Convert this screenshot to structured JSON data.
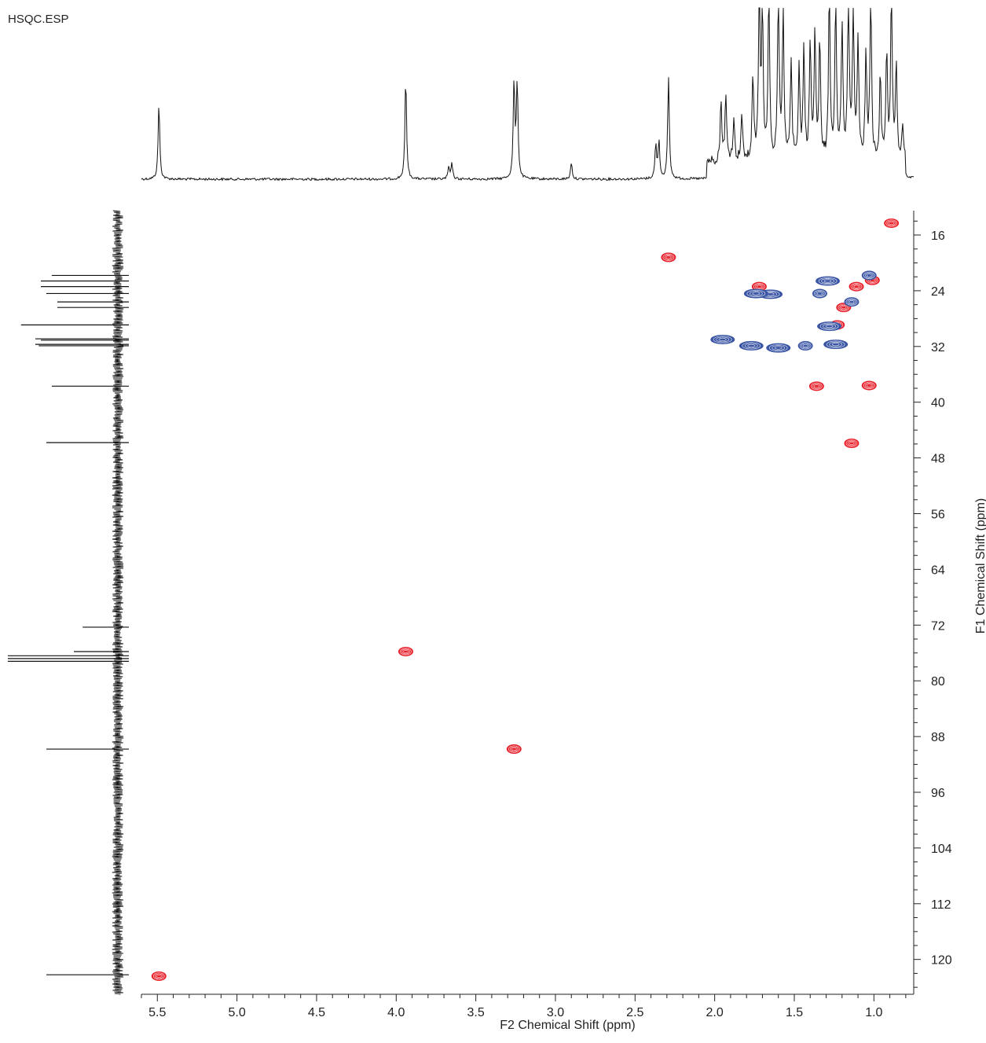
{
  "filename": "HSQC.ESP",
  "chart_data": {
    "type": "scatter",
    "xlabel": "F2 Chemical Shift (ppm)",
    "ylabel": "F1 Chemical Shift (ppm)",
    "xlim": [
      5.6,
      0.75
    ],
    "ylim": [
      12.5,
      125
    ],
    "x_ticks": [
      "5.5",
      "5.0",
      "4.5",
      "4.0",
      "3.5",
      "3.0",
      "2.5",
      "2.0",
      "1.5",
      "1.0"
    ],
    "y_ticks": [
      "16",
      "24",
      "32",
      "40",
      "48",
      "56",
      "64",
      "72",
      "80",
      "88",
      "96",
      "104",
      "112",
      "120"
    ],
    "series": [
      {
        "color": "#e8202a",
        "phase": "positive",
        "points": [
          [
            5.49,
            122.4
          ],
          [
            3.94,
            75.8
          ],
          [
            3.26,
            89.8
          ],
          [
            2.29,
            19.2
          ],
          [
            1.72,
            23.4
          ],
          [
            1.11,
            23.4
          ],
          [
            1.01,
            22.5
          ],
          [
            1.19,
            26.4
          ],
          [
            1.23,
            28.9
          ],
          [
            1.36,
            37.7
          ],
          [
            1.03,
            37.6
          ],
          [
            1.14,
            45.9
          ],
          [
            0.89,
            14.3
          ]
        ]
      },
      {
        "color": "#3a55a4",
        "phase": "negative",
        "points": [
          [
            1.95,
            31.0
          ],
          [
            1.77,
            31.9
          ],
          [
            1.6,
            32.2
          ],
          [
            1.43,
            31.9
          ],
          [
            1.28,
            29.1
          ],
          [
            1.24,
            31.7
          ],
          [
            1.65,
            24.5
          ],
          [
            1.74,
            24.4
          ],
          [
            1.34,
            24.4
          ],
          [
            1.29,
            22.6
          ],
          [
            1.14,
            25.6
          ],
          [
            1.03,
            21.8
          ]
        ]
      }
    ],
    "h1_peaks": [
      [
        5.49,
        0.45
      ],
      [
        3.94,
        0.6
      ],
      [
        3.67,
        0.07
      ],
      [
        3.65,
        0.09
      ],
      [
        3.26,
        0.57
      ],
      [
        3.24,
        0.57
      ],
      [
        2.9,
        0.1
      ],
      [
        2.37,
        0.2
      ],
      [
        2.35,
        0.22
      ],
      [
        2.29,
        0.6
      ],
      [
        1.96,
        0.35
      ],
      [
        1.93,
        0.38
      ],
      [
        1.88,
        0.25
      ],
      [
        1.83,
        0.27
      ],
      [
        1.76,
        0.5
      ],
      [
        1.72,
        1.0
      ],
      [
        1.7,
        0.85
      ],
      [
        1.66,
        1.0
      ],
      [
        1.6,
        1.0
      ],
      [
        1.57,
        0.85
      ],
      [
        1.52,
        0.6
      ],
      [
        1.47,
        0.55
      ],
      [
        1.44,
        0.65
      ],
      [
        1.4,
        0.7
      ],
      [
        1.37,
        0.75
      ],
      [
        1.34,
        0.7
      ],
      [
        1.28,
        1.0
      ],
      [
        1.24,
        1.0
      ],
      [
        1.2,
        0.8
      ],
      [
        1.16,
        1.0
      ],
      [
        1.13,
        0.9
      ],
      [
        1.1,
        0.7
      ],
      [
        1.05,
        0.6
      ],
      [
        1.02,
        1.0
      ],
      [
        0.96,
        0.5
      ],
      [
        0.92,
        0.65
      ],
      [
        0.89,
        1.0
      ],
      [
        0.86,
        0.55
      ],
      [
        0.82,
        0.2
      ]
    ],
    "c13_peaks": [
      [
        122.2,
        0.65
      ],
      [
        89.8,
        0.65
      ],
      [
        77.2,
        1.0
      ],
      [
        76.8,
        1.0
      ],
      [
        76.4,
        1.0
      ],
      [
        75.8,
        0.4
      ],
      [
        72.3,
        0.32
      ],
      [
        45.8,
        0.65
      ],
      [
        37.7,
        0.6
      ],
      [
        31.9,
        0.72
      ],
      [
        31.7,
        0.75
      ],
      [
        31.1,
        0.7
      ],
      [
        30.9,
        0.75
      ],
      [
        28.9,
        0.88
      ],
      [
        26.4,
        0.55
      ],
      [
        25.6,
        0.55
      ],
      [
        24.4,
        0.65
      ],
      [
        23.4,
        0.7
      ],
      [
        22.6,
        0.7
      ],
      [
        21.8,
        0.6
      ]
    ]
  }
}
